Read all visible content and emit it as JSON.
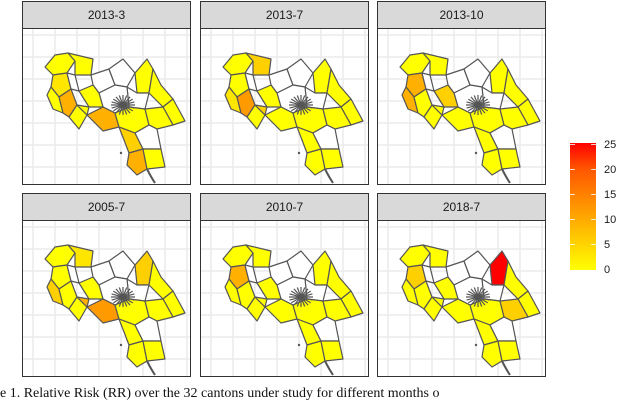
{
  "chart_data": {
    "type": "heatmap",
    "subtype": "choropleth small multiples",
    "title": "",
    "facets": [
      "2013-3",
      "2013-7",
      "2013-10",
      "2005-7",
      "2010-7",
      "2018-7"
    ],
    "region": "Costa Rica cantons",
    "n_regions_under_study": 32,
    "colorbar": {
      "label": "",
      "ticks": [
        0,
        5,
        10,
        15,
        20,
        25
      ],
      "range": [
        0,
        25
      ],
      "low_color": "#ffff00",
      "high_color": "#ff0000"
    },
    "highlights": [
      {
        "facet": "2013-3",
        "note": "southern (Osa) and western cantons orange (~RR 8-10)"
      },
      {
        "facet": "2013-7",
        "note": "western Nicoya cantons orange (~RR 8-10)"
      },
      {
        "facet": "2013-10",
        "note": "western Guanacaste cantons orange (~RR 8-10)"
      },
      {
        "facet": "2005-7",
        "note": "central Pacific coastal cantons orange (~RR 10-12)"
      },
      {
        "facet": "2010-7",
        "note": "western Nicoya canton orange (~RR 8-10)"
      },
      {
        "facet": "2018-7",
        "note": "northern canton red (~RR 25)"
      }
    ],
    "cantons_not_under_study_color": "#ffffff",
    "grid": true
  },
  "panels": [
    {
      "label": "2013-3"
    },
    {
      "label": "2013-7"
    },
    {
      "label": "2013-10"
    },
    {
      "label": "2005-7"
    },
    {
      "label": "2010-7"
    },
    {
      "label": "2018-7"
    }
  ],
  "legend": {
    "labels": [
      "25",
      "20",
      "15",
      "10",
      "5",
      "0"
    ]
  },
  "caption": {
    "text": "e 1.  Relative Risk (RR) over the 32 cantons under study for different months o"
  }
}
